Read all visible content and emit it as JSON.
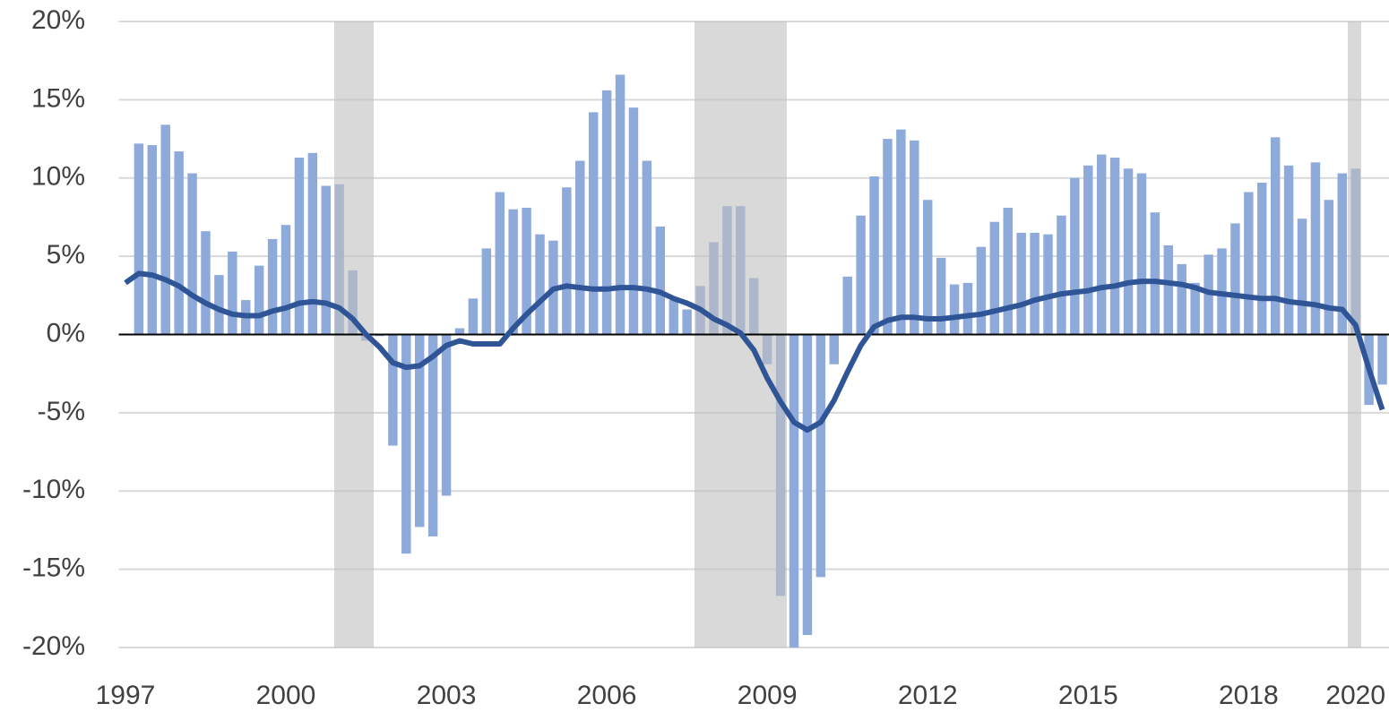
{
  "chart_data": {
    "type": "bar",
    "categories": [
      "1997",
      null,
      null,
      null,
      null,
      null,
      null,
      null,
      null,
      null,
      null,
      null,
      "2000",
      null,
      null,
      null,
      null,
      null,
      null,
      null,
      null,
      null,
      null,
      null,
      "2003",
      null,
      null,
      null,
      null,
      null,
      null,
      null,
      null,
      null,
      null,
      null,
      "2006",
      null,
      null,
      null,
      null,
      null,
      null,
      null,
      null,
      null,
      null,
      null,
      "2009",
      null,
      null,
      null,
      null,
      null,
      null,
      null,
      null,
      null,
      null,
      null,
      "2012",
      null,
      null,
      null,
      null,
      null,
      null,
      null,
      null,
      null,
      null,
      null,
      "2015",
      null,
      null,
      null,
      null,
      null,
      null,
      null,
      null,
      null,
      null,
      null,
      "2018",
      null,
      null,
      null,
      null,
      null,
      null,
      null,
      "2020",
      null,
      null
    ],
    "series": [
      {
        "type": "bar",
        "color": "#8eaadb",
        "values": [
          null,
          12.2,
          12.1,
          13.4,
          11.7,
          10.3,
          6.6,
          3.8,
          5.3,
          2.2,
          4.4,
          6.1,
          7.0,
          11.3,
          11.6,
          9.5,
          9.6,
          4.1,
          -0.4,
          -0.1,
          -7.1,
          -14.0,
          -12.3,
          -12.9,
          -10.3,
          0.4,
          2.3,
          5.5,
          9.1,
          8.0,
          8.1,
          6.4,
          6.0,
          9.4,
          11.1,
          14.2,
          15.6,
          16.6,
          14.5,
          11.1,
          6.9,
          2.2,
          1.6,
          3.1,
          5.9,
          8.2,
          8.2,
          3.6,
          -1.9,
          -16.7,
          -20.0,
          -19.2,
          -15.5,
          -1.9,
          3.7,
          7.6,
          10.1,
          12.5,
          13.1,
          12.4,
          8.6,
          4.9,
          3.2,
          3.3,
          5.6,
          7.2,
          8.1,
          6.5,
          6.5,
          6.4,
          7.6,
          10.0,
          10.8,
          11.5,
          11.3,
          10.6,
          10.3,
          7.8,
          5.7,
          4.5,
          3.3,
          5.1,
          5.5,
          7.1,
          9.1,
          9.7,
          12.6,
          10.8,
          7.4,
          11.0,
          8.6,
          10.3,
          10.6,
          -4.5,
          -3.2
        ]
      },
      {
        "type": "line",
        "color": "#2f5597",
        "values": [
          3.3,
          3.9,
          3.8,
          3.5,
          3.1,
          2.5,
          2.0,
          1.6,
          1.3,
          1.2,
          1.2,
          1.5,
          1.7,
          2.0,
          2.1,
          2.0,
          1.7,
          1.0,
          0.0,
          -0.8,
          -1.8,
          -2.1,
          -2.0,
          -1.4,
          -0.7,
          -0.4,
          -0.6,
          -0.6,
          -0.6,
          0.4,
          1.3,
          2.1,
          2.9,
          3.1,
          3.0,
          2.9,
          2.9,
          3.0,
          3.0,
          2.9,
          2.7,
          2.3,
          2.0,
          1.6,
          1.0,
          0.6,
          0.1,
          -1.0,
          -2.8,
          -4.3,
          -5.6,
          -6.1,
          -5.6,
          -4.2,
          -2.4,
          -0.7,
          0.5,
          0.9,
          1.1,
          1.1,
          1.0,
          1.0,
          1.1,
          1.2,
          1.3,
          1.5,
          1.7,
          1.9,
          2.2,
          2.4,
          2.6,
          2.7,
          2.8,
          3.0,
          3.1,
          3.3,
          3.4,
          3.4,
          3.3,
          3.2,
          3.0,
          2.7,
          2.6,
          2.5,
          2.4,
          2.3,
          2.3,
          2.1,
          2.0,
          1.9,
          1.7,
          1.6,
          0.6,
          -2.2,
          -4.8
        ]
      }
    ],
    "ylim": [
      -20,
      20
    ],
    "yticks": [
      {
        "value": -20,
        "label": "-20%"
      },
      {
        "value": -15,
        "label": "-15%"
      },
      {
        "value": -10,
        "label": "-10%"
      },
      {
        "value": -5,
        "label": "-5%"
      },
      {
        "value": 0,
        "label": "0%"
      },
      {
        "value": 5,
        "label": "5%"
      },
      {
        "value": 10,
        "label": "10%"
      },
      {
        "value": 15,
        "label": "15%"
      },
      {
        "value": 20,
        "label": "20%"
      }
    ],
    "grid": true
  }
}
